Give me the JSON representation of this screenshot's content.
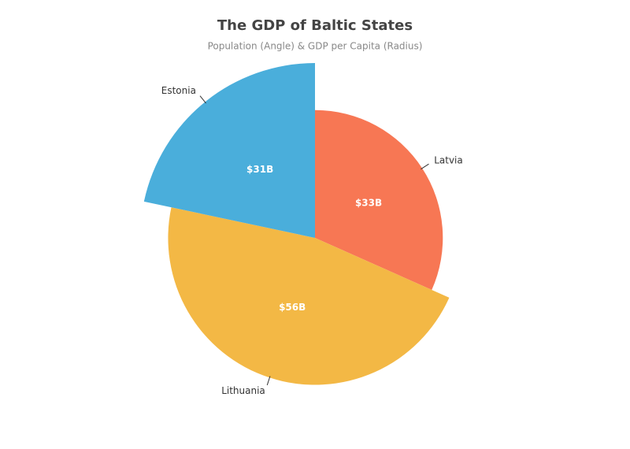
{
  "chart_data": {
    "type": "pie",
    "title": "The GDP of Baltic States",
    "subtitle": "Population (Angle) & GDP per Capita (Radius)",
    "categories": [
      "Latvia",
      "Lithuania",
      "Estonia"
    ],
    "angle_values": [
      1.9,
      2.8,
      1.3
    ],
    "radius_values": [
      17400,
      20000,
      23800
    ],
    "values": [
      33000000000,
      56000000000,
      31000000000
    ],
    "value_labels": [
      "$33B",
      "$56B",
      "$31B"
    ],
    "colors": [
      "#f77754",
      "#f3b845",
      "#4aaedb"
    ]
  }
}
